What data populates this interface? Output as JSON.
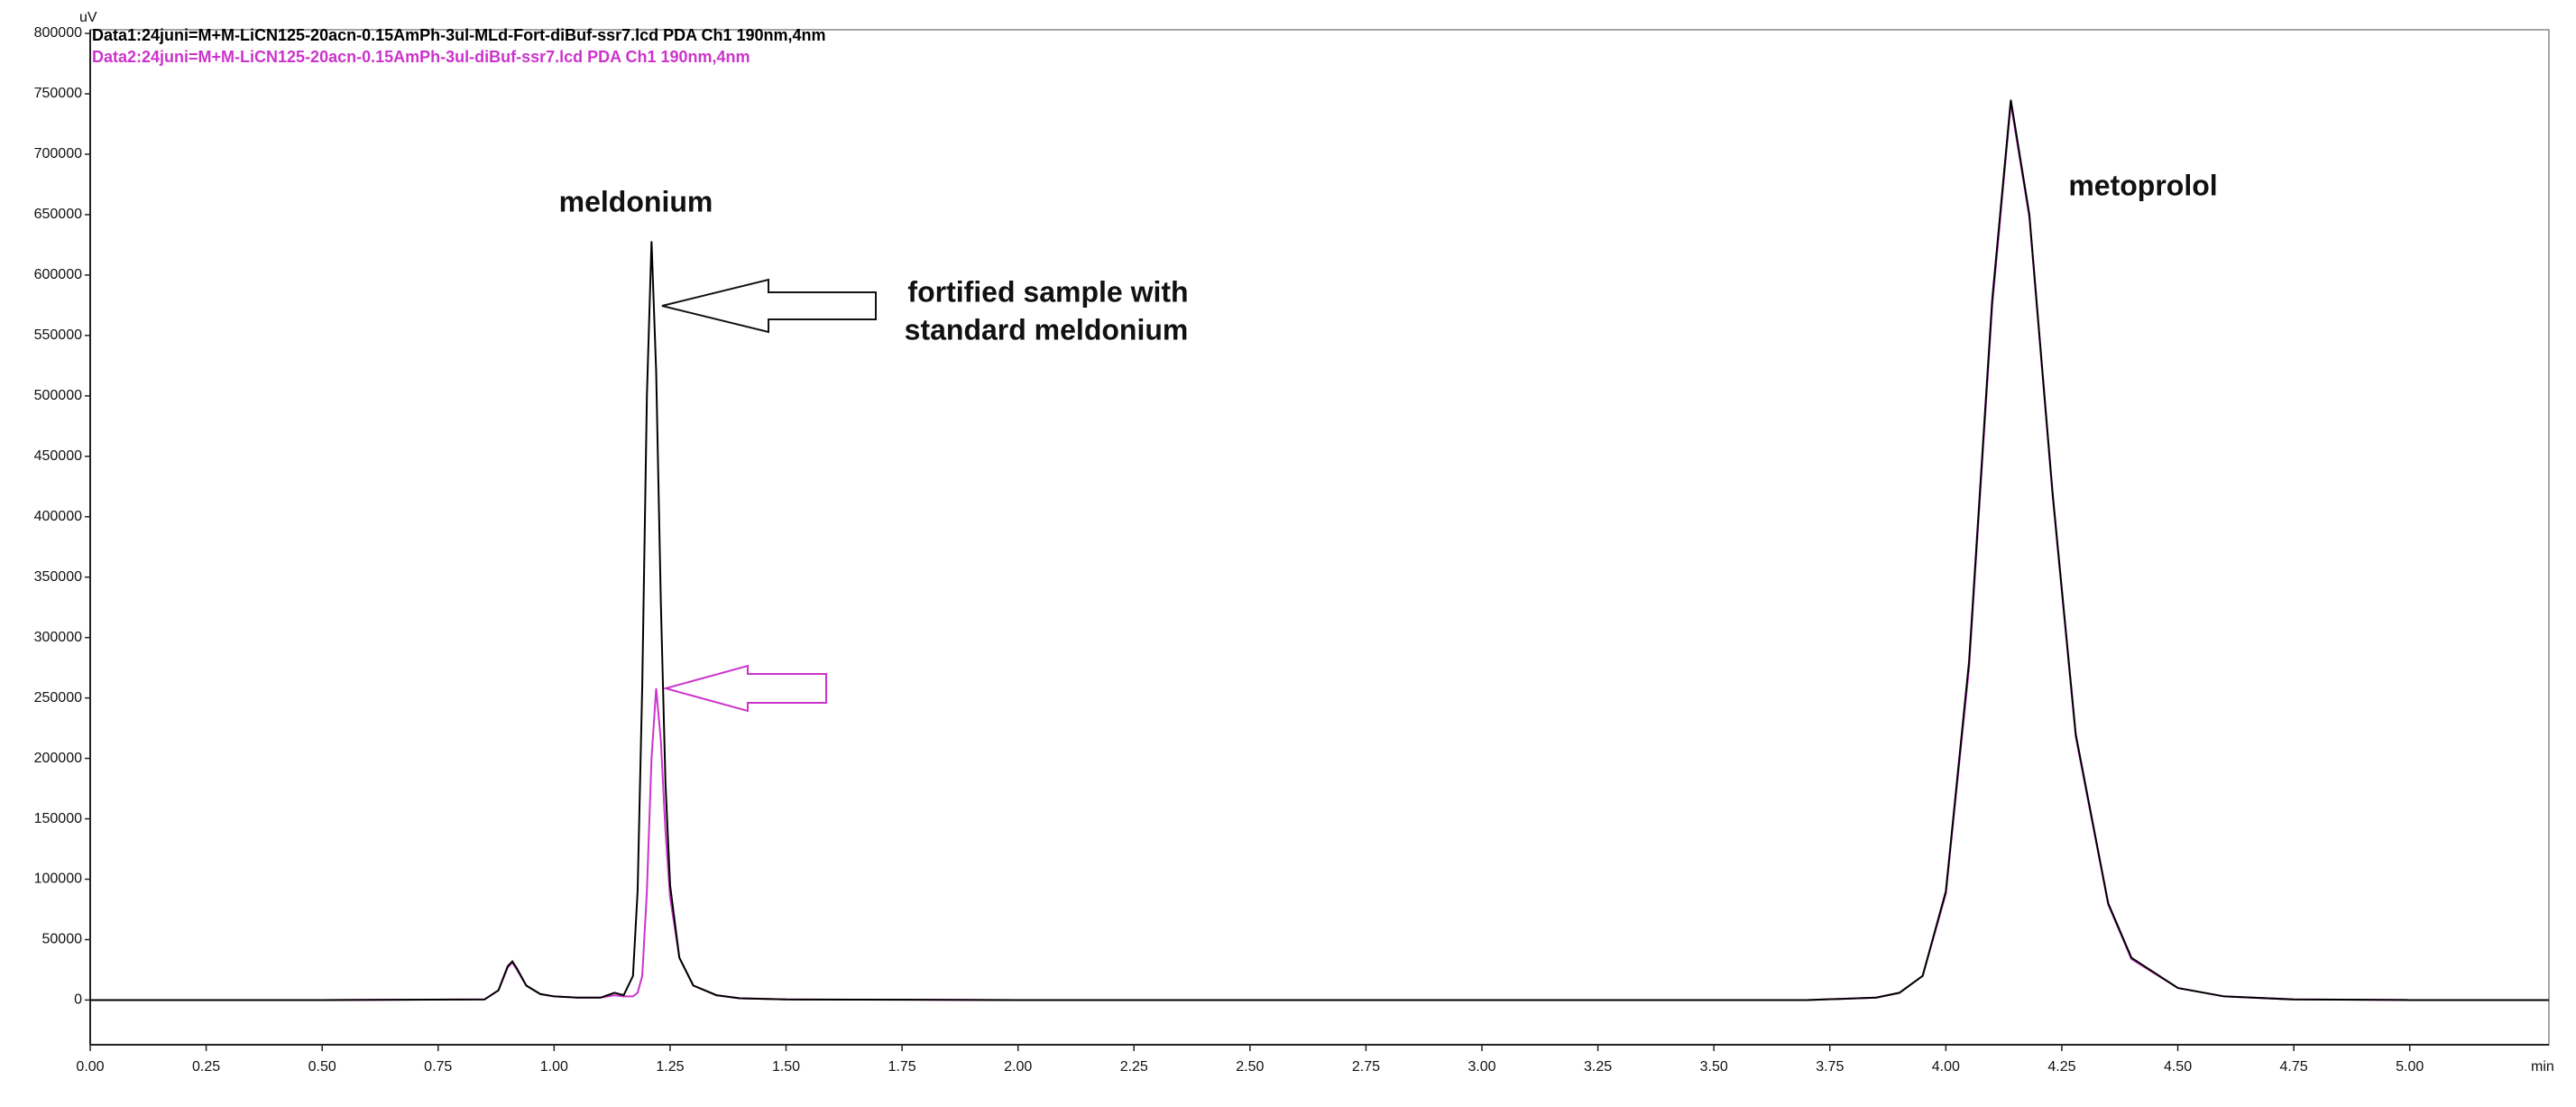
{
  "chart_data": {
    "type": "line",
    "y_label": "uV",
    "x_label": "min",
    "legend": "top-left",
    "x": [
      0,
      0.5,
      0.85,
      0.88,
      0.9,
      0.91,
      0.92,
      0.94,
      0.97,
      1.0,
      1.05,
      1.1,
      1.13,
      1.15,
      1.17,
      1.18,
      1.19,
      1.2,
      1.21,
      1.22,
      1.23,
      1.24,
      1.25,
      1.27,
      1.3,
      1.35,
      1.4,
      1.5,
      2.0,
      3.0,
      3.7,
      3.85,
      3.9,
      3.95,
      4.0,
      4.05,
      4.1,
      4.14,
      4.18,
      4.23,
      4.28,
      4.35,
      4.4,
      4.5,
      4.6,
      4.75,
      5.0,
      5.3
    ],
    "series": [
      {
        "name": "Data1:24juni=M+M-LiCN125-20acn-0.15AmPh-3ul-MLd-Fort-diBuf-ssr7.lcd PDA Ch1 190nm,4nm",
        "color": "#000000",
        "values": [
          0,
          0,
          500,
          8000,
          28000,
          32000,
          26000,
          12000,
          5000,
          3000,
          2000,
          2000,
          6000,
          4000,
          20000,
          90000,
          260000,
          500000,
          628000,
          520000,
          330000,
          180000,
          95000,
          35000,
          12000,
          4000,
          1500,
          500,
          0,
          0,
          0,
          2000,
          6000,
          20000,
          90000,
          280000,
          580000,
          745000,
          650000,
          420000,
          220000,
          80000,
          35000,
          10000,
          3000,
          500,
          0,
          0
        ]
      },
      {
        "name": "Data2:24juni=M+M-LiCN125-20acn-0.15AmPh-3ul-diBuf-ssr7.lcd PDA Ch1 190nm,4nm",
        "color": "#cc33cc",
        "values": [
          0,
          0,
          500,
          8000,
          27000,
          31000,
          25000,
          12000,
          5000,
          3000,
          2000,
          2000,
          4000,
          3000,
          3000,
          6000,
          20000,
          90000,
          200000,
          258000,
          215000,
          140000,
          85000,
          35000,
          12000,
          4000,
          1500,
          500,
          0,
          0,
          0,
          2000,
          6000,
          20000,
          88000,
          275000,
          575000,
          742000,
          648000,
          418000,
          218000,
          79000,
          34000,
          10000,
          3000,
          500,
          0,
          0
        ]
      }
    ],
    "annotations": [
      "meldonium",
      "metoprolol",
      "fortified sample with",
      "standard meldonium"
    ],
    "xlim": [
      0,
      5.3
    ],
    "ylim": [
      -37000,
      803000
    ],
    "xticks": [
      {
        "value": 0,
        "label": "0.00"
      },
      {
        "value": 0.25,
        "label": "0.25"
      },
      {
        "value": 0.5,
        "label": "0.50"
      },
      {
        "value": 0.75,
        "label": "0.75"
      },
      {
        "value": 1,
        "label": "1.00"
      },
      {
        "value": 1.25,
        "label": "1.25"
      },
      {
        "value": 1.5,
        "label": "1.50"
      },
      {
        "value": 1.75,
        "label": "1.75"
      },
      {
        "value": 2,
        "label": "2.00"
      },
      {
        "value": 2.25,
        "label": "2.25"
      },
      {
        "value": 2.5,
        "label": "2.50"
      },
      {
        "value": 2.75,
        "label": "2.75"
      },
      {
        "value": 3,
        "label": "3.00"
      },
      {
        "value": 3.25,
        "label": "3.25"
      },
      {
        "value": 3.5,
        "label": "3.50"
      },
      {
        "value": 3.75,
        "label": "3.75"
      },
      {
        "value": 4,
        "label": "4.00"
      },
      {
        "value": 4.25,
        "label": "4.25"
      },
      {
        "value": 4.5,
        "label": "4.50"
      },
      {
        "value": 4.75,
        "label": "4.75"
      },
      {
        "value": 5,
        "label": "5.00"
      }
    ],
    "yticks": [
      0,
      50000,
      100000,
      150000,
      200000,
      250000,
      300000,
      350000,
      400000,
      450000,
      500000,
      550000,
      600000,
      650000,
      700000,
      750000,
      800000
    ],
    "grid": false
  }
}
